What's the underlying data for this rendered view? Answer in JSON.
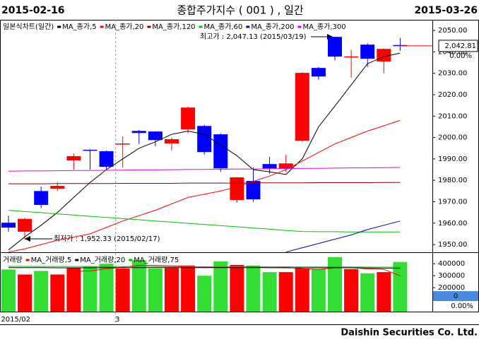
{
  "header": {
    "start_date": "2015-02-16",
    "title": "종합주가지수 ( 001 ) , 일간",
    "end_date": "2015-03-26"
  },
  "chart_data": [
    {
      "type": "candlestick",
      "title": "일본식차트(일간)",
      "categories": [
        "2015/02",
        null,
        null,
        null,
        null,
        null,
        null,
        "3",
        null,
        null,
        null,
        null,
        null,
        null,
        null,
        null,
        null,
        null,
        null,
        null,
        null,
        null,
        null,
        null,
        null
      ],
      "open": [
        1960.2,
        1956.0,
        1975.0,
        1976.1,
        1989.3,
        1994.3,
        1993.6,
        1996.8,
        2003.1,
        2002.8,
        1997.2,
        2003.8,
        2005.4,
        2001.5,
        1970.8,
        1979.7,
        1987.6,
        1985.6,
        1998.5,
        2032.5,
        2047.0,
        2037.5,
        2043.4,
        2035.5,
        2043.2
      ],
      "high": [
        1963.5,
        1962.5,
        1977.0,
        1979.0,
        1992.5,
        1994.5,
        1994.0,
        2000.5,
        2003.5,
        2003.0,
        2000.0,
        2014.5,
        2006.0,
        2002.0,
        1981.5,
        1986.0,
        1991.0,
        1992.0,
        2030.5,
        2033.0,
        2047.13,
        2041.0,
        2044.0,
        2041.6,
        2046.5
      ],
      "low": [
        1956.0,
        1952.33,
        1967.0,
        1975.0,
        1985.0,
        1985.0,
        1985.0,
        1985.9,
        1997.0,
        1996.0,
        1994.0,
        2002.0,
        1992.0,
        1984.0,
        1969.5,
        1970.0,
        1983.0,
        1984.0,
        1998.0,
        2027.0,
        2036.0,
        2028.0,
        2033.0,
        2030.0,
        2040.5
      ],
      "close": [
        1957.9,
        1962.0,
        1968.5,
        1977.4,
        1991.3,
        1994.0,
        1986.3,
        1997.2,
        2002.1,
        1998.8,
        1999.2,
        2014.0,
        1993.2,
        1985.6,
        1981.4,
        1971.1,
        1985.6,
        1987.9,
        2030.2,
        2028.5,
        2037.8,
        2037.9,
        2036.8,
        2041.4,
        2042.81
      ],
      "up_color": "#ff0000",
      "down_color": "#0000ff",
      "ylim": [
        1946.4,
        2055
      ],
      "yticks": [
        {
          "value": 1950,
          "label": "1950.00"
        },
        {
          "value": 1960,
          "label": "1960.00"
        },
        {
          "value": 1970,
          "label": "1970.00"
        },
        {
          "value": 1980,
          "label": "1980.00"
        },
        {
          "value": 1990,
          "label": "1990.00"
        },
        {
          "value": 2000,
          "label": "2000.00"
        },
        {
          "value": 2010,
          "label": "2010.00"
        },
        {
          "value": 2020,
          "label": "2020.00"
        },
        {
          "value": 2030,
          "label": "2030.00"
        },
        {
          "value": 2040,
          "label": "2040.00"
        },
        {
          "value": 2050,
          "label": "2050.00"
        }
      ],
      "series": [
        {
          "name": "MA_종가,5",
          "color": "#000000",
          "values": [
            1947.5,
            1953.6,
            1959,
            1965,
            1972,
            1979,
            1985,
            1990,
            1995,
            1998,
            2001.5,
            2003,
            2001.5,
            1996.5,
            1991.5,
            1985,
            1984,
            1982.7,
            1990,
            2005,
            2014.7,
            2024.6,
            2034.5,
            2037.8,
            2039.4
          ]
        },
        {
          "name": "MA_종가,20",
          "color": "#ff0000",
          "values": [
            1946.5,
            1948,
            1950,
            1952,
            1953.5,
            1955,
            1958,
            1961,
            1963.5,
            1966,
            1969,
            1972,
            1973.5,
            1975,
            1977,
            1979.5,
            1982,
            1985,
            1989,
            1993,
            1997,
            2000,
            2003,
            2005.5,
            2008
          ]
        },
        {
          "name": "MA_종가,120",
          "color": "#8b0000",
          "values": [
            1978.4,
            1978.4,
            1978.4,
            1978.5,
            1978.5,
            1978.5,
            1978.5,
            1978.6,
            1978.6,
            1978.6,
            1978.6,
            1978.7,
            1978.7,
            1978.7,
            1978.7,
            1978.8,
            1978.8,
            1978.8,
            1978.8,
            1978.9,
            1978.9,
            1978.9,
            1978.9,
            1979,
            1979
          ]
        },
        {
          "name": "MA_종가,60",
          "color": "#00c000",
          "values": [
            1966,
            1965.4,
            1964.9,
            1964.3,
            1963.8,
            1963.2,
            1962.7,
            1962.1,
            1961.6,
            1961,
            1960.5,
            1959.9,
            1959.4,
            1958.8,
            1958.3,
            1957.7,
            1957.2,
            1956.6,
            1956.1,
            1956,
            1956,
            1955.9,
            1955.9,
            1955.9,
            1955.9
          ]
        },
        {
          "name": "MA_종가,200",
          "color": "#0000c0",
          "values": [
            null,
            null,
            null,
            null,
            null,
            null,
            null,
            null,
            null,
            null,
            null,
            null,
            null,
            null,
            null,
            null,
            null,
            1946.5,
            1948.5,
            1950.5,
            1952.5,
            1954.5,
            1957,
            1959,
            1961
          ]
        },
        {
          "name": "MA_종가,300",
          "color": "#e000e0",
          "values": [
            1984.3,
            1984.4,
            1984.4,
            1984.5,
            1984.6,
            1984.6,
            1984.7,
            1984.8,
            1984.9,
            1984.9,
            1985,
            1985.1,
            1985.1,
            1985.2,
            1985.3,
            1985.3,
            1985.4,
            1985.5,
            1985.6,
            1985.6,
            1985.7,
            1985.8,
            1985.8,
            1985.9,
            1986
          ]
        }
      ],
      "annotations": [
        {
          "text": "최고가 : 2,047.13 (2015/03/19)",
          "color": "#ff0000"
        },
        {
          "text": "최저가 : 1,952.33 (2015/02/17)",
          "color": "#000080"
        }
      ],
      "last_price": {
        "value": 2042.81,
        "label": "2,042.81"
      },
      "change": {
        "value": 0,
        "label": "0.00%"
      }
    },
    {
      "type": "bar",
      "title": "거래량",
      "values": [
        352000,
        310000,
        340000,
        310000,
        365000,
        378000,
        400000,
        360000,
        430000,
        360000,
        365000,
        385000,
        300000,
        420000,
        390000,
        385000,
        330000,
        330000,
        360000,
        355000,
        455000,
        355000,
        320000,
        330000,
        415000
      ],
      "up_color": "#ff0000",
      "down_color": "#33dd33",
      "ylim": [
        0,
        490000
      ],
      "yticks": [
        200000,
        300000,
        400000
      ],
      "series": [
        {
          "name": "MA_거래량,5",
          "color": "#ff0000",
          "values": [
            null,
            null,
            null,
            null,
            335000,
            340000,
            358000,
            370000,
            387000,
            386000,
            383000,
            380000,
            368000,
            372000,
            374000,
            376000,
            366000,
            371000,
            359000,
            352000,
            366000,
            367000,
            357000,
            353000,
            300000
          ]
        },
        {
          "name": "MA_거래량,20",
          "color": "#000000",
          "values": [
            368000,
            367000,
            367000,
            366000,
            366000,
            366000,
            367000,
            367000,
            368000,
            368000,
            368000,
            368000,
            367000,
            367000,
            368000,
            368000,
            367000,
            366000,
            366000,
            366000,
            367000,
            366000,
            364000,
            363000,
            362000
          ]
        },
        {
          "name": "MA_거래량,75",
          "color": "#00c000",
          "values": [
            378000,
            378000,
            377000,
            377000,
            377000,
            377000,
            376000,
            376000,
            376000,
            376000,
            375000,
            375000,
            375000,
            375000,
            374000,
            374000,
            374000,
            374000,
            373000,
            373000,
            373000,
            373000,
            372000,
            372000,
            372000
          ]
        }
      ],
      "last_volume": 0,
      "change": {
        "value": 0,
        "label": "0.00%"
      }
    }
  ],
  "footer": "Daishin Securities Co. Ltd."
}
